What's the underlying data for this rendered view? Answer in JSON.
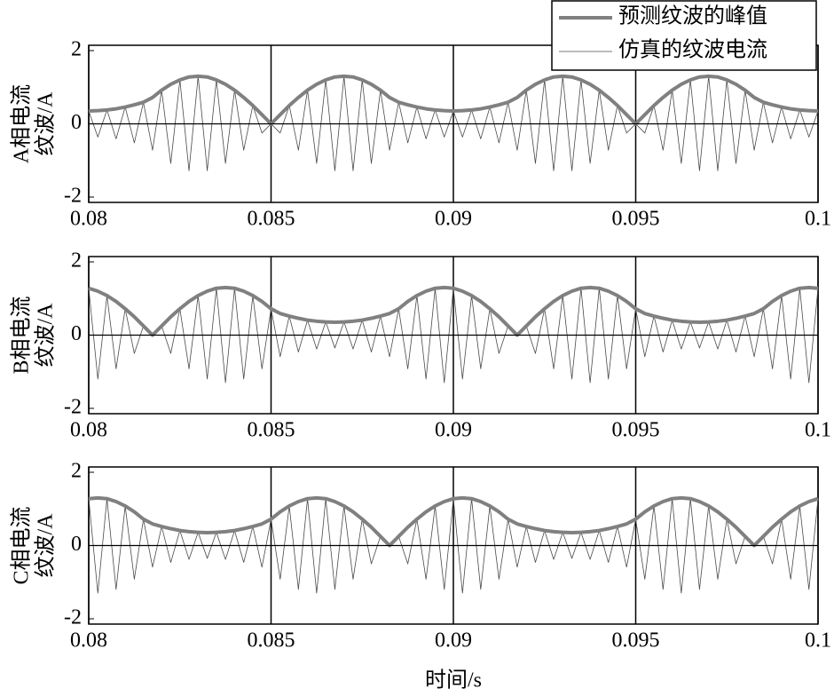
{
  "chart_data": [
    {
      "type": "line",
      "ylabel": [
        "A相电流",
        "纹波/A"
      ],
      "xlim": [
        0.08,
        0.1
      ],
      "xticks": [
        0.08,
        0.085,
        0.09,
        0.095,
        0.1
      ],
      "ylim": [
        -2,
        2
      ],
      "yticks": [
        -2,
        0,
        2
      ],
      "grid": "x",
      "legend": "upper right",
      "x": [
        0.08,
        0.08025,
        0.0805,
        0.08075,
        0.081,
        0.08125,
        0.0815,
        0.08175,
        0.082,
        0.08225,
        0.0825,
        0.08275,
        0.083,
        0.08325,
        0.0835,
        0.08375,
        0.084,
        0.08425,
        0.0845,
        0.08475,
        0.085,
        0.08525,
        0.0855,
        0.08575,
        0.086,
        0.08625,
        0.0865,
        0.08675,
        0.087,
        0.08725,
        0.0875,
        0.08775,
        0.088,
        0.08825,
        0.0885,
        0.08875,
        0.089,
        0.08925,
        0.0895,
        0.08975,
        0.09,
        0.09025,
        0.0905,
        0.09075,
        0.091,
        0.09125,
        0.0915,
        0.09175,
        0.092,
        0.09225,
        0.0925,
        0.09275,
        0.093,
        0.09325,
        0.0935,
        0.09375,
        0.094,
        0.09425,
        0.0945,
        0.09475,
        0.095,
        0.09525,
        0.0955,
        0.09575,
        0.096,
        0.09625,
        0.0965,
        0.09675,
        0.097,
        0.09725,
        0.0975,
        0.09775,
        0.098,
        0.09825,
        0.0985,
        0.09875,
        0.099,
        0.09925,
        0.0995,
        0.09975,
        0.1
      ],
      "series": [
        {
          "name": "预测纹波的峰值",
          "color": "#808080",
          "values": [
            0.35,
            0.36,
            0.38,
            0.41,
            0.46,
            0.52,
            0.59,
            0.72,
            0.92,
            1.08,
            1.2,
            1.28,
            1.3,
            1.28,
            1.2,
            1.08,
            0.92,
            0.72,
            0.5,
            0.25,
            0,
            0.25,
            0.5,
            0.72,
            0.92,
            1.08,
            1.2,
            1.28,
            1.3,
            1.28,
            1.2,
            1.08,
            0.92,
            0.72,
            0.59,
            0.52,
            0.46,
            0.41,
            0.38,
            0.36,
            0.35,
            0.36,
            0.38,
            0.41,
            0.46,
            0.52,
            0.59,
            0.72,
            0.92,
            1.08,
            1.2,
            1.28,
            1.3,
            1.28,
            1.2,
            1.08,
            0.92,
            0.72,
            0.5,
            0.25,
            0,
            0.25,
            0.5,
            0.72,
            0.92,
            1.08,
            1.2,
            1.28,
            1.3,
            1.28,
            1.2,
            1.08,
            0.92,
            0.72,
            0.59,
            0.52,
            0.46,
            0.41,
            0.38,
            0.36,
            0.35
          ]
        },
        {
          "name": "仿真的纹波电流",
          "color": "#4a4a4a",
          "values": [
            0.35,
            -0.36,
            0.38,
            -0.41,
            0.46,
            -0.52,
            0.59,
            -0.72,
            0.92,
            -1.08,
            1.2,
            -1.28,
            1.3,
            -1.28,
            1.2,
            -1.08,
            0.92,
            -0.72,
            0.5,
            -0.25,
            0,
            -0.25,
            0.5,
            -0.72,
            0.92,
            -1.08,
            1.2,
            -1.28,
            1.3,
            -1.28,
            1.2,
            -1.08,
            0.92,
            -0.72,
            0.59,
            -0.52,
            0.46,
            -0.41,
            0.38,
            -0.36,
            0.35,
            -0.36,
            0.38,
            -0.41,
            0.46,
            -0.52,
            0.59,
            -0.72,
            0.92,
            -1.08,
            1.2,
            -1.28,
            1.3,
            -1.28,
            1.2,
            -1.08,
            0.92,
            -0.72,
            0.5,
            -0.25,
            0,
            -0.25,
            0.5,
            -0.72,
            0.92,
            -1.08,
            1.2,
            -1.28,
            1.3,
            -1.28,
            1.2,
            -1.08,
            0.92,
            -0.72,
            0.59,
            -0.52,
            0.46,
            -0.41,
            0.38,
            -0.36,
            0.35
          ]
        }
      ]
    },
    {
      "type": "line",
      "ylabel": [
        "B相电流",
        "纹波/A"
      ],
      "xlim": [
        0.08,
        0.1
      ],
      "xticks": [
        0.08,
        0.085,
        0.09,
        0.095,
        0.1
      ],
      "ylim": [
        -2,
        2
      ],
      "yticks": [
        -2,
        0,
        2
      ],
      "grid": "x",
      "x": [
        0.08,
        0.08025,
        0.0805,
        0.08075,
        0.081,
        0.08125,
        0.0815,
        0.08175,
        0.082,
        0.08225,
        0.0825,
        0.08275,
        0.083,
        0.08325,
        0.0835,
        0.08375,
        0.084,
        0.08425,
        0.0845,
        0.08475,
        0.085,
        0.08525,
        0.0855,
        0.08575,
        0.086,
        0.08625,
        0.0865,
        0.08675,
        0.087,
        0.08725,
        0.0875,
        0.08775,
        0.088,
        0.08825,
        0.0885,
        0.08875,
        0.089,
        0.08925,
        0.0895,
        0.08975,
        0.09,
        0.09025,
        0.0905,
        0.09075,
        0.091,
        0.09125,
        0.0915,
        0.09175,
        0.092,
        0.09225,
        0.0925,
        0.09275,
        0.093,
        0.09325,
        0.0935,
        0.09375,
        0.094,
        0.09425,
        0.0945,
        0.09475,
        0.095,
        0.09525,
        0.0955,
        0.09575,
        0.096,
        0.09625,
        0.0965,
        0.09675,
        0.097,
        0.09725,
        0.0975,
        0.09775,
        0.098,
        0.09825,
        0.0985,
        0.09875,
        0.099,
        0.09925,
        0.0995,
        0.09975,
        0.1
      ],
      "series": [
        {
          "color": "#808080",
          "values": [
            1.28,
            1.2,
            1.08,
            0.92,
            0.72,
            0.5,
            0.25,
            0,
            0.25,
            0.5,
            0.72,
            0.92,
            1.08,
            1.2,
            1.28,
            1.3,
            1.28,
            1.2,
            1.08,
            0.92,
            0.72,
            0.59,
            0.52,
            0.46,
            0.41,
            0.38,
            0.36,
            0.35,
            0.36,
            0.38,
            0.41,
            0.46,
            0.52,
            0.59,
            0.72,
            0.92,
            1.08,
            1.2,
            1.28,
            1.3,
            1.28,
            1.2,
            1.08,
            0.92,
            0.72,
            0.5,
            0.25,
            0,
            0.25,
            0.5,
            0.72,
            0.92,
            1.08,
            1.2,
            1.28,
            1.3,
            1.28,
            1.2,
            1.08,
            0.92,
            0.72,
            0.59,
            0.52,
            0.46,
            0.41,
            0.38,
            0.36,
            0.35,
            0.36,
            0.38,
            0.41,
            0.46,
            0.52,
            0.59,
            0.72,
            0.92,
            1.08,
            1.2,
            1.28,
            1.3,
            1.28
          ]
        },
        {
          "color": "#4a4a4a",
          "values": [
            1.28,
            -1.2,
            1.08,
            -0.92,
            0.72,
            -0.5,
            0.25,
            0,
            0.25,
            -0.5,
            0.72,
            -0.92,
            1.08,
            -1.2,
            1.28,
            -1.3,
            1.28,
            -1.2,
            1.08,
            -0.92,
            0.72,
            -0.59,
            0.52,
            -0.46,
            0.41,
            -0.38,
            0.36,
            -0.35,
            0.36,
            -0.38,
            0.41,
            -0.46,
            0.52,
            -0.59,
            0.72,
            -0.92,
            1.08,
            -1.2,
            1.28,
            -1.3,
            1.28,
            -1.2,
            1.08,
            -0.92,
            0.72,
            -0.5,
            0.25,
            0,
            0.25,
            -0.5,
            0.72,
            -0.92,
            1.08,
            -1.2,
            1.28,
            -1.3,
            1.28,
            -1.2,
            1.08,
            -0.92,
            0.72,
            -0.59,
            0.52,
            -0.46,
            0.41,
            -0.38,
            0.36,
            -0.35,
            0.36,
            -0.38,
            0.41,
            -0.46,
            0.52,
            -0.59,
            0.72,
            -0.92,
            1.08,
            -1.2,
            1.28,
            -1.3,
            1.28
          ]
        }
      ]
    },
    {
      "type": "line",
      "ylabel": [
        "C相电流",
        "纹波/A"
      ],
      "xlabel": "时间/s",
      "xlim": [
        0.08,
        0.1
      ],
      "xticks": [
        0.08,
        0.085,
        0.09,
        0.095,
        0.1
      ],
      "ylim": [
        -2,
        2
      ],
      "yticks": [
        -2,
        0,
        2
      ],
      "grid": "x",
      "x": [
        0.08,
        0.08025,
        0.0805,
        0.08075,
        0.081,
        0.08125,
        0.0815,
        0.08175,
        0.082,
        0.08225,
        0.0825,
        0.08275,
        0.083,
        0.08325,
        0.0835,
        0.08375,
        0.084,
        0.08425,
        0.0845,
        0.08475,
        0.085,
        0.08525,
        0.0855,
        0.08575,
        0.086,
        0.08625,
        0.0865,
        0.08675,
        0.087,
        0.08725,
        0.0875,
        0.08775,
        0.088,
        0.08825,
        0.0885,
        0.08875,
        0.089,
        0.08925,
        0.0895,
        0.08975,
        0.09,
        0.09025,
        0.0905,
        0.09075,
        0.091,
        0.09125,
        0.0915,
        0.09175,
        0.092,
        0.09225,
        0.0925,
        0.09275,
        0.093,
        0.09325,
        0.0935,
        0.09375,
        0.094,
        0.09425,
        0.0945,
        0.09475,
        0.095,
        0.09525,
        0.0955,
        0.09575,
        0.096,
        0.09625,
        0.0965,
        0.09675,
        0.097,
        0.09725,
        0.0975,
        0.09775,
        0.098,
        0.09825,
        0.0985,
        0.09875,
        0.099,
        0.09925,
        0.0995,
        0.09975,
        0.1
      ],
      "series": [
        {
          "color": "#808080",
          "values": [
            1.28,
            1.3,
            1.28,
            1.2,
            1.08,
            0.92,
            0.72,
            0.59,
            0.52,
            0.46,
            0.41,
            0.38,
            0.36,
            0.35,
            0.36,
            0.38,
            0.41,
            0.46,
            0.52,
            0.59,
            0.72,
            0.92,
            1.08,
            1.2,
            1.28,
            1.3,
            1.28,
            1.2,
            1.08,
            0.92,
            0.72,
            0.5,
            0.25,
            0,
            0.25,
            0.5,
            0.72,
            0.92,
            1.08,
            1.2,
            1.28,
            1.3,
            1.28,
            1.2,
            1.08,
            0.92,
            0.72,
            0.59,
            0.52,
            0.46,
            0.41,
            0.38,
            0.36,
            0.35,
            0.36,
            0.38,
            0.41,
            0.46,
            0.52,
            0.59,
            0.72,
            0.92,
            1.08,
            1.2,
            1.28,
            1.3,
            1.28,
            1.2,
            1.08,
            0.92,
            0.72,
            0.5,
            0.25,
            0,
            0.25,
            0.5,
            0.72,
            0.92,
            1.08,
            1.2,
            1.28
          ]
        },
        {
          "color": "#4a4a4a",
          "values": [
            1.28,
            -1.3,
            1.28,
            -1.2,
            1.08,
            -0.92,
            0.72,
            -0.59,
            0.52,
            -0.46,
            0.41,
            -0.38,
            0.36,
            -0.35,
            0.36,
            -0.38,
            0.41,
            -0.46,
            0.52,
            -0.59,
            0.72,
            -0.92,
            1.08,
            -1.2,
            1.28,
            -1.3,
            1.28,
            -1.2,
            1.08,
            -0.92,
            0.72,
            -0.5,
            0.25,
            0,
            0.25,
            -0.5,
            0.72,
            -0.92,
            1.08,
            -1.2,
            1.28,
            -1.3,
            1.28,
            -1.2,
            1.08,
            -0.92,
            0.72,
            -0.59,
            0.52,
            -0.46,
            0.41,
            -0.38,
            0.36,
            -0.35,
            0.36,
            -0.38,
            0.41,
            -0.46,
            0.52,
            -0.59,
            0.72,
            -0.92,
            1.08,
            -1.2,
            1.28,
            -1.3,
            1.28,
            -1.2,
            1.08,
            -0.92,
            0.72,
            -0.5,
            0.25,
            0,
            0.25,
            -0.5,
            0.72,
            -0.92,
            1.08,
            -1.2,
            1.28
          ]
        }
      ]
    }
  ]
}
